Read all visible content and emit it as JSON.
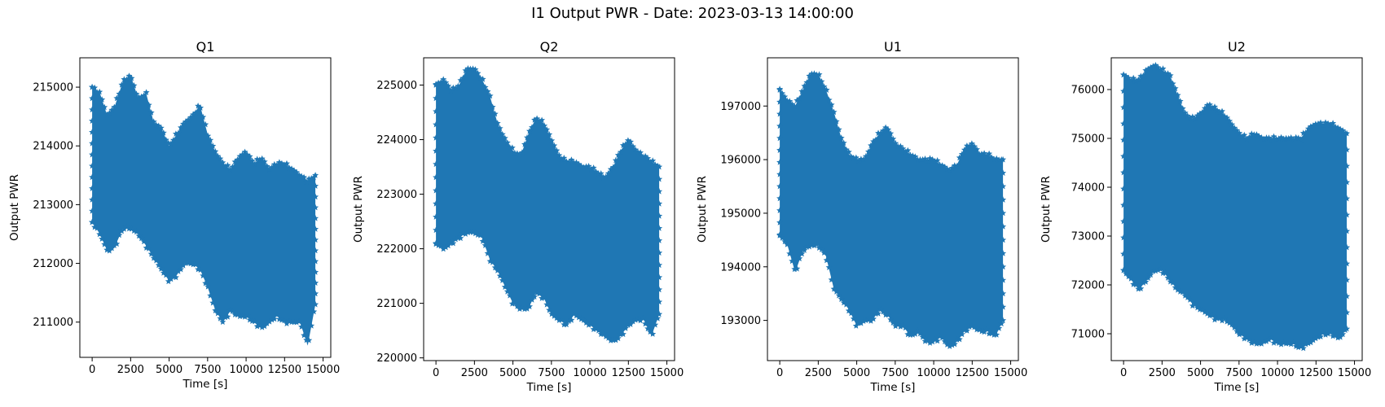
{
  "figure": {
    "title": "I1 Output PWR - Date: 2023-03-13 14:00:00"
  },
  "colors": {
    "series": "#1f77b4",
    "axes": "#000000",
    "background": "#ffffff"
  },
  "chart_data": [
    {
      "type": "scatter",
      "marker": "star",
      "title": "Q1",
      "xlabel": "Time [s]",
      "ylabel": "Output PWR",
      "xlim": [
        -800,
        15500
      ],
      "ylim": [
        210400,
        215500
      ],
      "xticks": [
        0,
        2500,
        5000,
        7500,
        10000,
        12500,
        15000
      ],
      "xtick_labels": [
        "0",
        "2500",
        "5000",
        "7500",
        "10000",
        "12500",
        "15000"
      ],
      "yticks": [
        211000,
        212000,
        213000,
        214000,
        215000
      ],
      "ytick_labels": [
        "211000",
        "212000",
        "213000",
        "214000",
        "215000"
      ],
      "series": [
        {
          "x": [
            0,
            500,
            1000,
            1500,
            2000,
            2500,
            3000,
            3500,
            4000,
            4500,
            5000,
            5500,
            6000,
            6500,
            7000,
            7500,
            8000,
            8500,
            9000,
            9500,
            10000,
            10500,
            11000,
            11500,
            12000,
            12500,
            13000,
            13500,
            14000,
            14500
          ],
          "y_upper": [
            215000,
            214900,
            214500,
            214700,
            215100,
            215200,
            214800,
            214900,
            214400,
            214300,
            214000,
            214200,
            214400,
            214500,
            214700,
            214200,
            213900,
            213700,
            213600,
            213800,
            213900,
            213700,
            213800,
            213600,
            213700,
            213700,
            213600,
            213500,
            213400,
            213500
          ],
          "y_lower": [
            212700,
            212500,
            212200,
            212300,
            212600,
            212600,
            212500,
            212300,
            212100,
            211900,
            211700,
            211800,
            212000,
            212000,
            211900,
            211600,
            211200,
            211000,
            211200,
            211100,
            211100,
            211000,
            210900,
            211000,
            211100,
            211000,
            211000,
            211000,
            210600,
            211300
          ]
        }
      ]
    },
    {
      "type": "scatter",
      "marker": "star",
      "title": "Q2",
      "xlabel": "Time [s]",
      "ylabel": "Output PWR",
      "xlim": [
        -800,
        15500
      ],
      "ylim": [
        219950,
        225500
      ],
      "xticks": [
        0,
        2500,
        5000,
        7500,
        10000,
        12500,
        15000
      ],
      "xtick_labels": [
        "0",
        "2500",
        "5000",
        "7500",
        "10000",
        "12500",
        "15000"
      ],
      "yticks": [
        220000,
        221000,
        222000,
        223000,
        224000,
        225000
      ],
      "ytick_labels": [
        "220000",
        "221000",
        "222000",
        "223000",
        "224000",
        "225000"
      ],
      "series": [
        {
          "x": [
            0,
            500,
            1000,
            1500,
            2000,
            2500,
            3000,
            3500,
            4000,
            4500,
            5000,
            5500,
            6000,
            6500,
            7000,
            7500,
            8000,
            8500,
            9000,
            9500,
            10000,
            10500,
            11000,
            11500,
            12000,
            12500,
            13000,
            13500,
            14000,
            14500
          ],
          "y_upper": [
            225000,
            225100,
            224900,
            225000,
            225300,
            225300,
            225100,
            224800,
            224300,
            224000,
            223800,
            223700,
            224100,
            224400,
            224300,
            224000,
            223700,
            223600,
            223600,
            223500,
            223500,
            223400,
            223300,
            223500,
            223800,
            224000,
            223800,
            223700,
            223600,
            223500
          ],
          "y_lower": [
            222100,
            222000,
            222100,
            222200,
            222300,
            222300,
            222200,
            221800,
            221600,
            221300,
            221000,
            220900,
            220900,
            221200,
            221100,
            220800,
            220700,
            220600,
            220800,
            220700,
            220600,
            220500,
            220400,
            220300,
            220400,
            220600,
            220700,
            220700,
            220400,
            220800
          ]
        }
      ]
    },
    {
      "type": "scatter",
      "marker": "star",
      "title": "U1",
      "xlabel": "Time [s]",
      "ylabel": "Output PWR",
      "xlim": [
        -800,
        15500
      ],
      "ylim": [
        192250,
        197900
      ],
      "xticks": [
        0,
        2500,
        5000,
        7500,
        10000,
        12500,
        15000
      ],
      "xtick_labels": [
        "0",
        "2500",
        "5000",
        "7500",
        "10000",
        "12500",
        "15000"
      ],
      "yticks": [
        193000,
        194000,
        195000,
        196000,
        197000
      ],
      "ytick_labels": [
        "193000",
        "194000",
        "195000",
        "196000",
        "197000"
      ],
      "series": [
        {
          "x": [
            0,
            500,
            1000,
            1500,
            2000,
            2500,
            3000,
            3500,
            4000,
            4500,
            5000,
            5500,
            6000,
            6500,
            7000,
            7500,
            8000,
            8500,
            9000,
            9500,
            10000,
            10500,
            11000,
            11500,
            12000,
            12500,
            13000,
            13500,
            14000,
            14500
          ],
          "y_upper": [
            197300,
            197100,
            197000,
            197300,
            197600,
            197600,
            197300,
            196900,
            196400,
            196100,
            196000,
            196000,
            196300,
            196500,
            196600,
            196300,
            196200,
            196100,
            196000,
            196000,
            196000,
            195900,
            195800,
            195900,
            196200,
            196300,
            196100,
            196100,
            196000,
            196000
          ],
          "y_lower": [
            194600,
            194400,
            193900,
            194300,
            194400,
            194400,
            194200,
            193600,
            193400,
            193200,
            192900,
            193000,
            193000,
            193200,
            193100,
            192900,
            192900,
            192700,
            192800,
            192600,
            192600,
            192700,
            192500,
            192600,
            192800,
            192900,
            192800,
            192800,
            192700,
            193000
          ]
        }
      ]
    },
    {
      "type": "scatter",
      "marker": "star",
      "title": "U2",
      "xlabel": "Time [s]",
      "ylabel": "Output PWR",
      "xlim": [
        -800,
        15500
      ],
      "ylim": [
        70450,
        76650
      ],
      "xticks": [
        0,
        2500,
        5000,
        7500,
        10000,
        12500,
        15000
      ],
      "xtick_labels": [
        "0",
        "2500",
        "5000",
        "7500",
        "10000",
        "12500",
        "15000"
      ],
      "yticks": [
        71000,
        72000,
        73000,
        74000,
        75000,
        76000
      ],
      "ytick_labels": [
        "71000",
        "72000",
        "73000",
        "74000",
        "75000",
        "76000"
      ],
      "series": [
        {
          "x": [
            0,
            500,
            1000,
            1500,
            2000,
            2500,
            3000,
            3500,
            4000,
            4500,
            5000,
            5500,
            6000,
            6500,
            7000,
            7500,
            8000,
            8500,
            9000,
            9500,
            10000,
            10500,
            11000,
            11500,
            12000,
            12500,
            13000,
            13500,
            14000,
            14500
          ],
          "y_upper": [
            76300,
            76200,
            76200,
            76400,
            76500,
            76400,
            76300,
            75900,
            75500,
            75400,
            75500,
            75700,
            75600,
            75500,
            75300,
            75100,
            75000,
            75100,
            75000,
            75000,
            75000,
            75000,
            75000,
            75000,
            75200,
            75300,
            75300,
            75300,
            75200,
            75100
          ],
          "y_lower": [
            72300,
            72100,
            71900,
            72100,
            72300,
            72300,
            72100,
            71900,
            71800,
            71600,
            71500,
            71400,
            71300,
            71300,
            71200,
            71000,
            70900,
            70800,
            70800,
            70900,
            70800,
            70800,
            70800,
            70700,
            70800,
            70900,
            71000,
            71000,
            70900,
            71100
          ]
        }
      ]
    }
  ]
}
